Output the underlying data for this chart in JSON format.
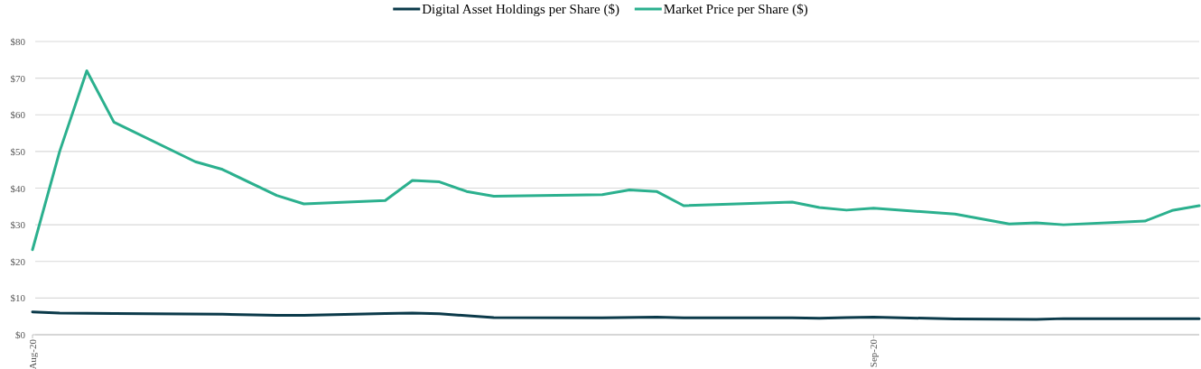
{
  "chart_data": {
    "type": "line",
    "xlim": [
      "2020-08-01",
      "2020-09-13"
    ],
    "xticks": [
      {
        "value": "2020-08-01",
        "label": "Aug-20"
      },
      {
        "value": "2020-09-01",
        "label": "Sep-20"
      }
    ],
    "ylim": [
      0,
      80
    ],
    "yticks": [
      {
        "value": 0,
        "label": "$0"
      },
      {
        "value": 10,
        "label": "$10"
      },
      {
        "value": 20,
        "label": "$20"
      },
      {
        "value": 30,
        "label": "$30"
      },
      {
        "value": 40,
        "label": "$40"
      },
      {
        "value": 50,
        "label": "$50"
      },
      {
        "value": 60,
        "label": "$60"
      },
      {
        "value": 70,
        "label": "$70"
      },
      {
        "value": 80,
        "label": "$80"
      }
    ],
    "series": [
      {
        "name": "Digital Asset Holdings per Share ($)",
        "color": "#0b3a4a",
        "x": [
          "2020-08-01",
          "2020-08-02",
          "2020-08-04",
          "2020-08-08",
          "2020-08-10",
          "2020-08-11",
          "2020-08-14",
          "2020-08-15",
          "2020-08-16",
          "2020-08-18",
          "2020-08-22",
          "2020-08-24",
          "2020-08-25",
          "2020-08-29",
          "2020-08-30",
          "2020-08-31",
          "2020-09-01",
          "2020-09-04",
          "2020-09-07",
          "2020-09-08",
          "2020-09-13"
        ],
        "values": [
          6.2,
          5.9,
          5.8,
          5.6,
          5.3,
          5.3,
          5.8,
          5.9,
          5.7,
          4.7,
          4.6,
          4.8,
          4.6,
          4.6,
          4.5,
          4.7,
          4.8,
          4.3,
          4.2,
          4.4,
          4.4
        ]
      },
      {
        "name": "Market Price per Share ($)",
        "color": "#2bb08e",
        "x": [
          "2020-08-01",
          "2020-08-02",
          "2020-08-03",
          "2020-08-04",
          "2020-08-07",
          "2020-08-08",
          "2020-08-10",
          "2020-08-11",
          "2020-08-14",
          "2020-08-15",
          "2020-08-16",
          "2020-08-17",
          "2020-08-18",
          "2020-08-22",
          "2020-08-23",
          "2020-08-24",
          "2020-08-25",
          "2020-08-29",
          "2020-08-30",
          "2020-08-31",
          "2020-09-01",
          "2020-09-04",
          "2020-09-06",
          "2020-09-07",
          "2020-09-08",
          "2020-09-11",
          "2020-09-12",
          "2020-09-13"
        ],
        "values": [
          23.2,
          50,
          72,
          58,
          47.2,
          45.1,
          38,
          35.7,
          36.6,
          42.1,
          41.7,
          39.1,
          37.8,
          38.2,
          39.5,
          39.1,
          35.2,
          36.2,
          34.7,
          34,
          34.5,
          32.9,
          30.2,
          30.5,
          30,
          31,
          33.9,
          35.2
        ]
      }
    ],
    "grid": "y",
    "legend": "top",
    "line_style": "solid"
  }
}
